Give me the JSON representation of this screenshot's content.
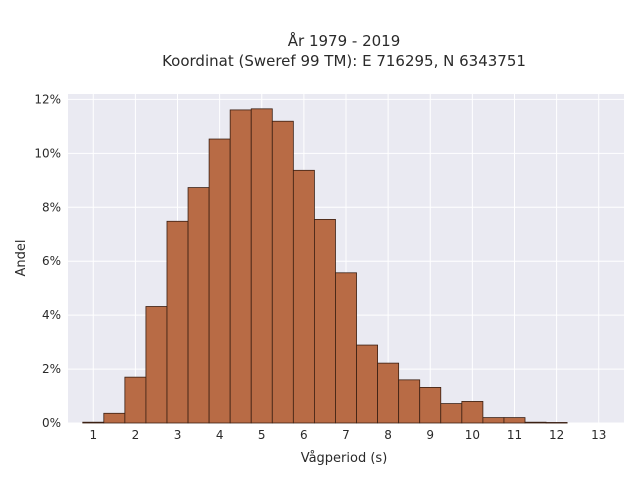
{
  "chart_data": {
    "type": "bar",
    "title_line1": "År 1979 - 2019",
    "title_line2": "Koordinat (Sweref 99 TM): E 716295, N 6343751",
    "xlabel": "Vågperiod (s)",
    "ylabel": "Andel",
    "xlim": [
      0.4,
      13.6
    ],
    "ylim": [
      0,
      0.122
    ],
    "bin_width": 0.5,
    "x_ticks": [
      1,
      2,
      3,
      4,
      5,
      6,
      7,
      8,
      9,
      10,
      11,
      12,
      13
    ],
    "y_ticks": [
      0,
      0.02,
      0.04,
      0.06,
      0.08,
      0.1,
      0.12
    ],
    "y_tick_labels": [
      "0%",
      "2%",
      "4%",
      "6%",
      "8%",
      "10%",
      "12%"
    ],
    "bins": [
      {
        "x": 1.0,
        "value": 0.0003
      },
      {
        "x": 1.5,
        "value": 0.0036
      },
      {
        "x": 2.0,
        "value": 0.017
      },
      {
        "x": 2.5,
        "value": 0.0432
      },
      {
        "x": 3.0,
        "value": 0.0748
      },
      {
        "x": 3.5,
        "value": 0.0873
      },
      {
        "x": 4.0,
        "value": 0.1053
      },
      {
        "x": 4.5,
        "value": 0.1161
      },
      {
        "x": 5.0,
        "value": 0.1165
      },
      {
        "x": 5.5,
        "value": 0.1119
      },
      {
        "x": 6.0,
        "value": 0.0937
      },
      {
        "x": 6.5,
        "value": 0.0755
      },
      {
        "x": 7.0,
        "value": 0.0557
      },
      {
        "x": 7.5,
        "value": 0.0289
      },
      {
        "x": 8.0,
        "value": 0.0222
      },
      {
        "x": 8.5,
        "value": 0.016
      },
      {
        "x": 9.0,
        "value": 0.0132
      },
      {
        "x": 9.5,
        "value": 0.0072
      },
      {
        "x": 10.0,
        "value": 0.008
      },
      {
        "x": 10.5,
        "value": 0.002
      },
      {
        "x": 11.0,
        "value": 0.002
      },
      {
        "x": 11.5,
        "value": 0.0003
      },
      {
        "x": 12.0,
        "value": 0.0002
      }
    ],
    "grid": true,
    "colors": {
      "bar_fill": "#b86b45",
      "bar_edge": "#3a1f12",
      "plot_bg": "#eaeaf2",
      "grid": "#ffffff",
      "text": "#2a2a2a"
    }
  }
}
